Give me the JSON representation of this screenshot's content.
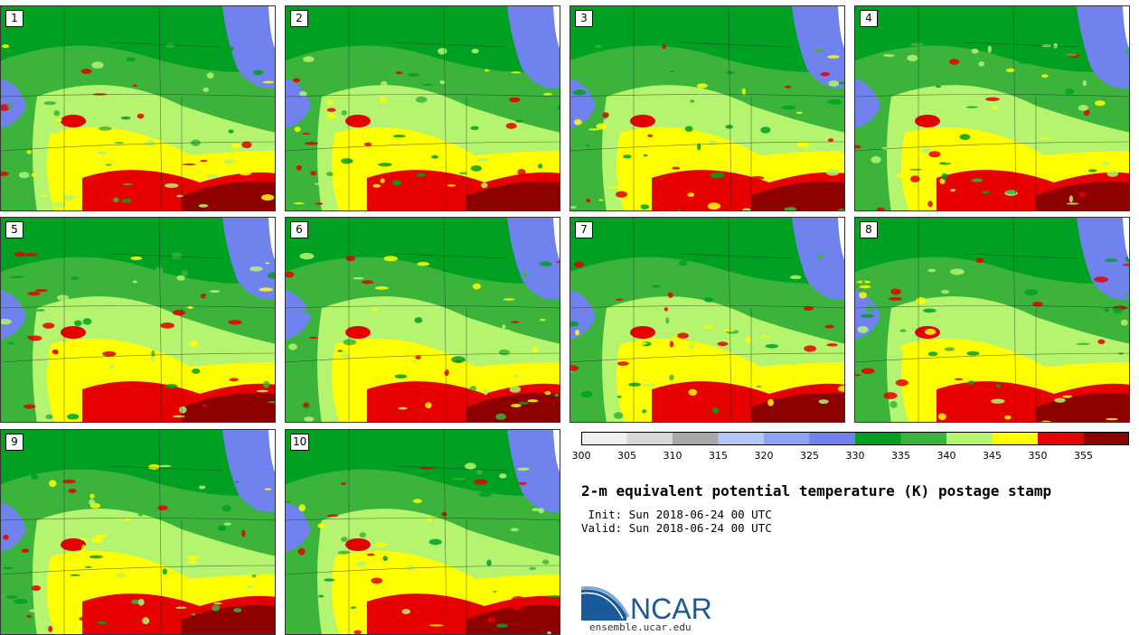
{
  "stamps": [
    {
      "label": "1"
    },
    {
      "label": "2"
    },
    {
      "label": "3"
    },
    {
      "label": "4"
    },
    {
      "label": "5"
    },
    {
      "label": "6"
    },
    {
      "label": "7"
    },
    {
      "label": "8"
    },
    {
      "label": "9"
    },
    {
      "label": "10"
    }
  ],
  "colorbar": {
    "ticks": [
      "300",
      "305",
      "310",
      "315",
      "320",
      "325",
      "330",
      "335",
      "340",
      "345",
      "350",
      "355"
    ],
    "colors": [
      "#f0f0f0",
      "#d8d8d8",
      "#a8a8a8",
      "#b4c6f5",
      "#8da3f3",
      "#6f82ee",
      "#00a023",
      "#3cb43c",
      "#b4f46e",
      "#ffff00",
      "#e60000",
      "#8c0000"
    ]
  },
  "title": "2-m equivalent potential temperature (K) postage stamp",
  "init_line": " Init: Sun 2018-06-24 00 UTC",
  "valid_line": "Valid: Sun 2018-06-24 00 UTC",
  "logo": {
    "wordmark": "NCAR",
    "url": "ensemble.ucar.edu"
  }
}
